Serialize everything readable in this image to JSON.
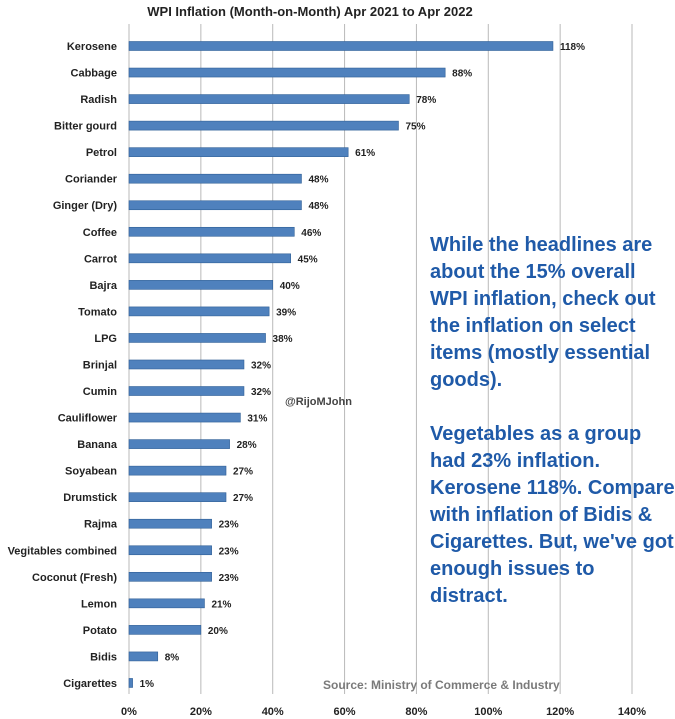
{
  "chart_data": {
    "type": "bar",
    "orientation": "horizontal",
    "title": "WPI Inflation (Month-on-Month) Apr 2021 to Apr 2022",
    "categories": [
      "Kerosene",
      "Cabbage",
      "Radish",
      "Bitter gourd",
      "Petrol",
      "Coriander",
      "Ginger (Dry)",
      "Coffee",
      "Carrot",
      "Bajra",
      "Tomato",
      "LPG",
      "Brinjal",
      "Cumin",
      "Cauliflower",
      "Banana",
      "Soyabean",
      "Drumstick",
      "Rajma",
      "Vegitables combined",
      "Coconut (Fresh)",
      "Lemon",
      "Potato",
      "Bidis",
      "Cigarettes"
    ],
    "values": [
      118,
      88,
      78,
      75,
      61,
      48,
      48,
      46,
      45,
      40,
      39,
      38,
      32,
      32,
      31,
      28,
      27,
      27,
      23,
      23,
      23,
      21,
      20,
      8,
      1
    ],
    "value_labels": [
      "118%",
      "88%",
      "78%",
      "75%",
      "61%",
      "48%",
      "48%",
      "46%",
      "45%",
      "40%",
      "39%",
      "38%",
      "32%",
      "32%",
      "31%",
      "28%",
      "27%",
      "27%",
      "23%",
      "23%",
      "23%",
      "21%",
      "20%",
      "8%",
      "1%"
    ],
    "xlim": [
      0,
      140
    ],
    "x_ticks": [
      "0%",
      "20%",
      "40%",
      "60%",
      "80%",
      "100%",
      "120%",
      "140%"
    ],
    "grid": true,
    "bar_color": "#4f81bd"
  },
  "annotations": {
    "callout_paragraphs": [
      "While the headlines are about the 15% overall WPI inflation, check out the inflation on select items (mostly essential goods).",
      "Vegetables as a group had 23% inflation. Kerosene 118%. Compare with inflation of Bidis & Cigarettes. But, we've got enough issues to distract."
    ],
    "callout_color": "#1f5aa8",
    "handle": "@RijoMJohn",
    "source": "Source: Ministry of Commerce & Industry"
  }
}
